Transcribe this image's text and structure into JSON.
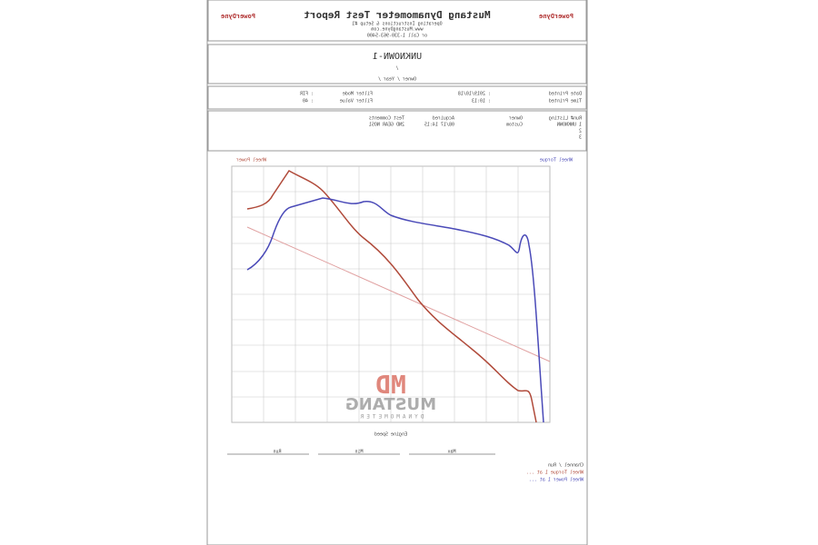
{
  "header": {
    "logo": "PowerDyne",
    "title": "Mustang Dynamometer Test Report",
    "lines": [
      "Operating Instructions & Setup #1",
      "www.MustangDyne.com",
      "or Call 1-330-963-5400"
    ]
  },
  "report": {
    "name": "UNKNOWN-1",
    "lines": [
      "/",
      "Owner / Year /"
    ]
  },
  "info": {
    "left": [
      [
        "Date Printed",
        ": 2019/10/18"
      ],
      [
        "Time Printed",
        ": 10:13"
      ]
    ],
    "right": [
      [
        "Filter Mode",
        ": FIR"
      ],
      [
        "Filter Value",
        ": 40"
      ]
    ]
  },
  "runs": {
    "headers": [
      "Run# Listing",
      "Owner",
      "Acquired",
      "Test Comments"
    ],
    "rows": [
      [
        "1 UNKNOWN",
        "Custom",
        "08/17 14:15",
        "2ND GEAR NOS1"
      ],
      [
        "2"
      ],
      [
        "3"
      ]
    ]
  },
  "chart": {
    "left_axis": "Wheel Power",
    "right_axis": "Wheel Torque",
    "x_axis": "Engine Speed"
  },
  "watermark": {
    "logo": "MD",
    "name": "MUSTANG",
    "sub": "DYNAMOMETER"
  },
  "table": {
    "groups": [
      "Run",
      "Min",
      "Max"
    ],
    "legend": [
      "Channel / Run",
      "Wheel Torque 1 at ...",
      "Wheel Power 1 at ..."
    ]
  }
}
